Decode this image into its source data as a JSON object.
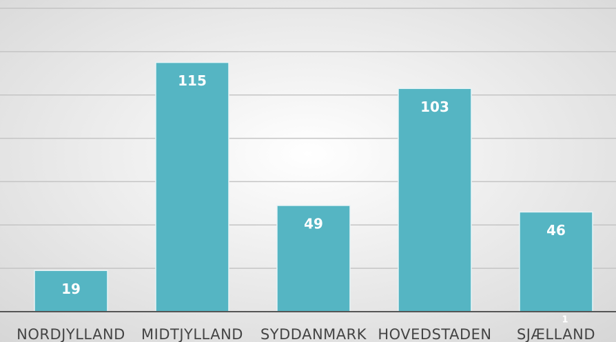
{
  "chart_data": {
    "type": "bar",
    "categories": [
      "NORDJYLLAND",
      "MIDTJYLLAND",
      "SYDDANMARK",
      "HOVEDSTADEN",
      "SJÆLLAND"
    ],
    "values": [
      19,
      115,
      49,
      103,
      46
    ],
    "color": "#55b5c3",
    "ylim": [
      0,
      140
    ],
    "yticks": [
      0,
      20,
      40,
      60,
      80,
      100,
      120,
      140
    ],
    "grid": true,
    "annotations": [
      "1"
    ]
  }
}
